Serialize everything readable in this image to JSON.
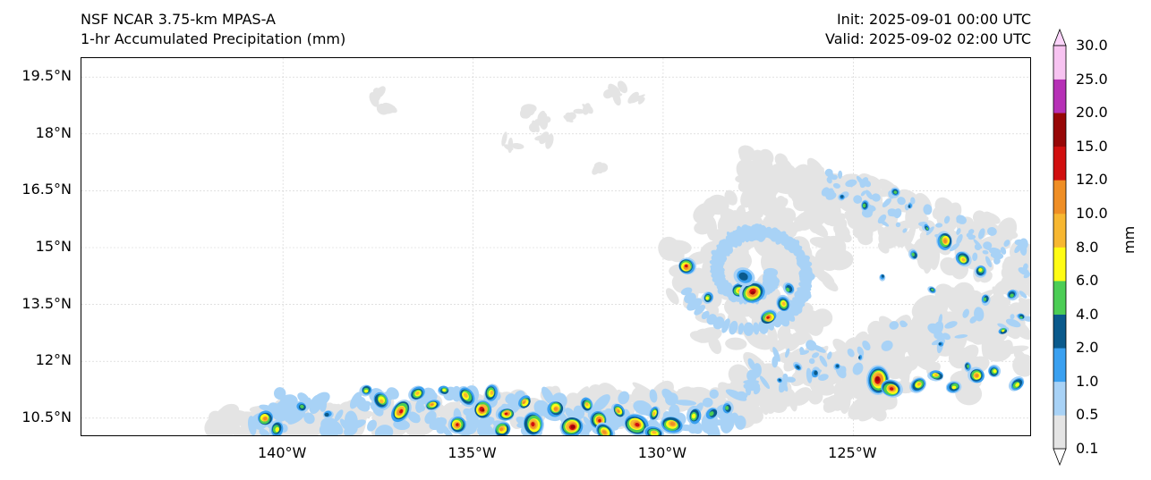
{
  "header": {
    "model": "NSF NCAR 3.75-km MPAS-A",
    "field": "1-hr Accumulated Precipitation (mm)",
    "init": "Init: 2025-09-01 00:00 UTC",
    "valid": "Valid: 2025-09-02 02:00 UTC"
  },
  "map": {
    "lat_ticks": [
      "19.5°N",
      "18°N",
      "16.5°N",
      "15°N",
      "13.5°N",
      "12°N",
      "10.5°N"
    ],
    "lon_ticks": [
      "140°W",
      "135°W",
      "130°W",
      "125°W"
    ],
    "extent": {
      "lon_min": -145.3,
      "lon_max": -120.3,
      "lat_min": 10.0,
      "lat_max": 20.0
    },
    "features": {
      "tropical_cyclone_center": {
        "lon": -127.3,
        "lat": 14.2,
        "label": ""
      }
    }
  },
  "colorbar": {
    "unit": "mm",
    "levels": [
      "0.1",
      "0.5",
      "1.0",
      "2.0",
      "4.0",
      "6.0",
      "8.0",
      "10.0",
      "12.0",
      "15.0",
      "20.0",
      "25.0",
      "30.0"
    ],
    "colors": [
      "#e4e4e4",
      "#a8d2f6",
      "#3aa0f0",
      "#0a5a8c",
      "#4ccd55",
      "#fffc14",
      "#f7b731",
      "#ef8e25",
      "#d10f0f",
      "#970707",
      "#b631b6",
      "#f7c3f1"
    ],
    "under_color": "#ffffff",
    "over_color": "#fbd4fa"
  }
}
